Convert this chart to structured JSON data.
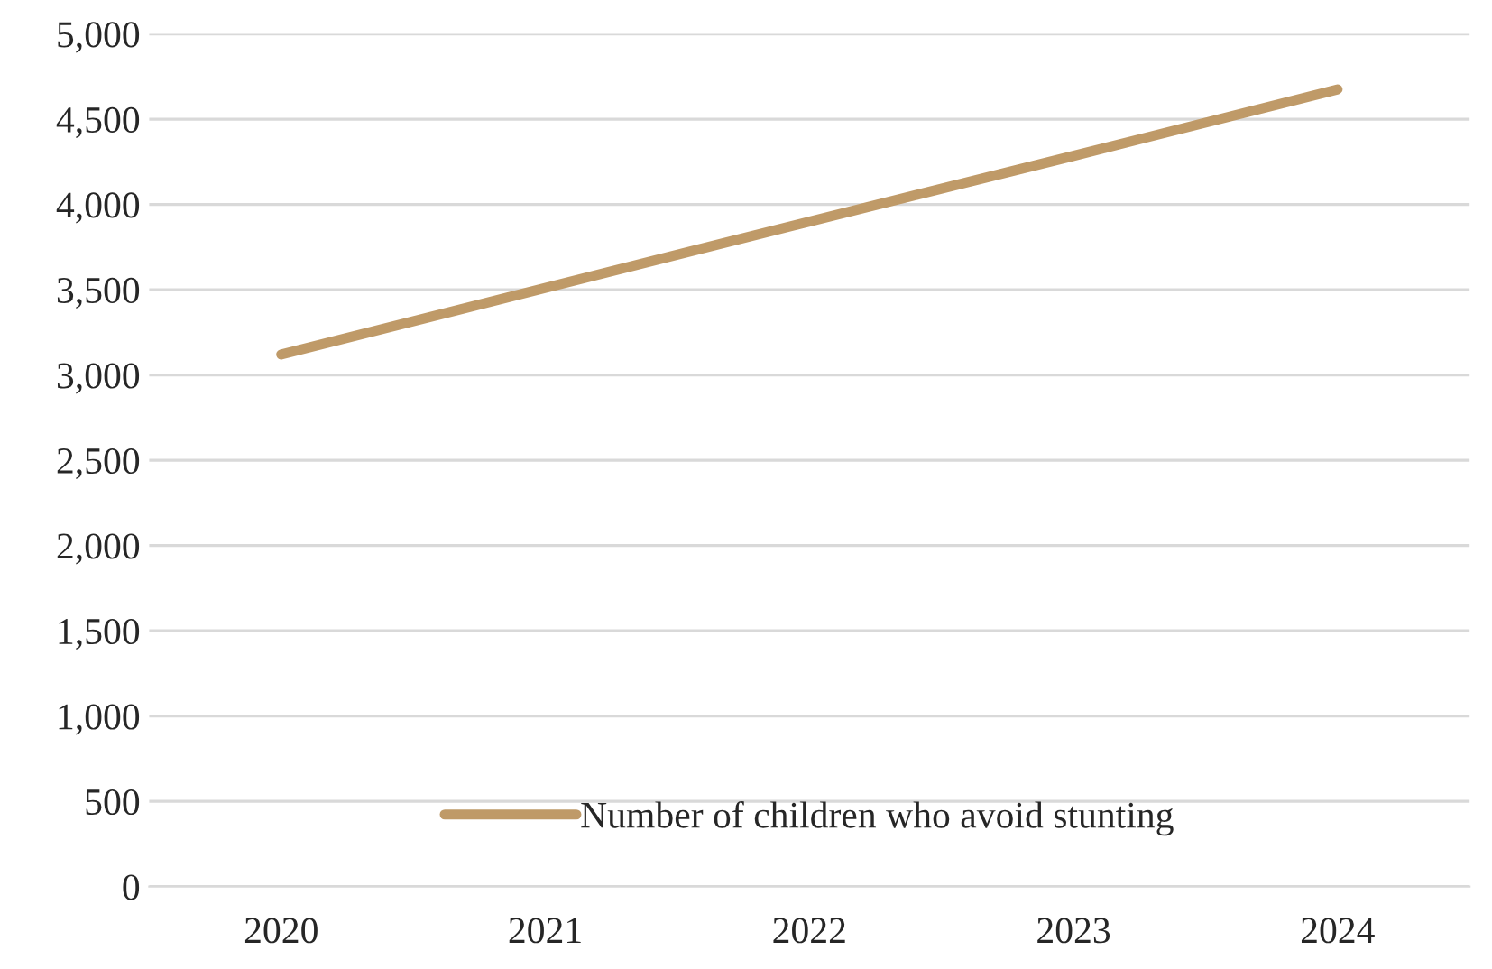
{
  "chart_data": {
    "type": "line",
    "categories": [
      "2020",
      "2021",
      "2022",
      "2023",
      "2024"
    ],
    "series": [
      {
        "name": "Number of children who avoid stunting",
        "color": "#bf9a68",
        "values": [
          3120,
          3510,
          3900,
          4285,
          4675
        ]
      }
    ],
    "ylim": [
      0,
      5000
    ],
    "yticks": [
      {
        "value": 0,
        "label": "0"
      },
      {
        "value": 500,
        "label": "500"
      },
      {
        "value": 1000,
        "label": "1,000"
      },
      {
        "value": 1500,
        "label": "1,500"
      },
      {
        "value": 2000,
        "label": "2,000"
      },
      {
        "value": 2500,
        "label": "2,500"
      },
      {
        "value": 3000,
        "label": "3,000"
      },
      {
        "value": 3500,
        "label": "3,500"
      },
      {
        "value": 4000,
        "label": "4,000"
      },
      {
        "value": 4500,
        "label": "4,500"
      },
      {
        "value": 5000,
        "label": "5,000"
      }
    ],
    "grid": "y",
    "legend": "bottom",
    "marker": "none",
    "line_style": "solid"
  }
}
